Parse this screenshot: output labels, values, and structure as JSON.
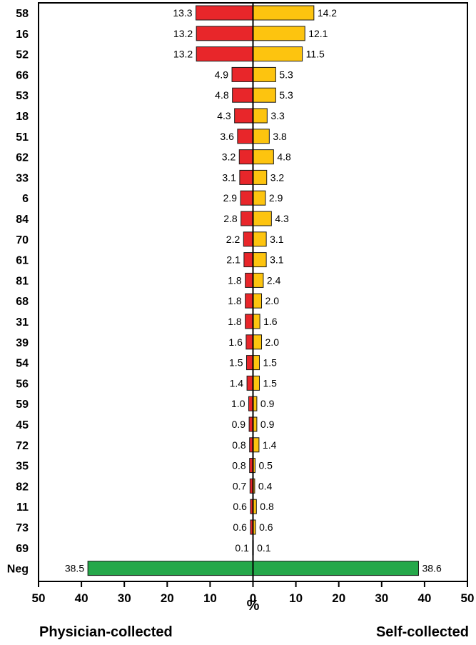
{
  "chart_data": {
    "type": "bar",
    "orientation": "horizontal",
    "layout": "mirrored-butterfly",
    "categories": [
      "58",
      "16",
      "52",
      "66",
      "53",
      "18",
      "51",
      "62",
      "33",
      "6",
      "84",
      "70",
      "61",
      "81",
      "68",
      "31",
      "39",
      "54",
      "56",
      "59",
      "45",
      "72",
      "35",
      "82",
      "11",
      "73",
      "69",
      "Neg"
    ],
    "series": [
      {
        "side": "left",
        "values": [
          13.3,
          13.2,
          13.2,
          4.9,
          4.8,
          4.3,
          3.6,
          3.2,
          3.1,
          2.9,
          2.8,
          2.2,
          2.1,
          1.8,
          1.8,
          1.8,
          1.6,
          1.5,
          1.4,
          1.0,
          0.9,
          0.8,
          0.8,
          0.7,
          0.6,
          0.6,
          0.1,
          38.5
        ],
        "labels": [
          "13.3",
          "13.2",
          "13.2",
          "4.9",
          "4.8",
          "4.3",
          "3.6",
          "3.2",
          "3.1",
          "2.9",
          "2.8",
          "2.2",
          "2.1",
          "1.8",
          "1.8",
          "1.8",
          "1.6",
          "1.5",
          "1.4",
          "1.0",
          "0.9",
          "0.8",
          "0.8",
          "0.7",
          "0.6",
          "0.6",
          "0.1",
          "38.5"
        ]
      },
      {
        "side": "right",
        "values": [
          14.2,
          12.1,
          11.5,
          5.3,
          5.3,
          3.3,
          3.8,
          4.8,
          3.2,
          2.9,
          4.3,
          3.1,
          3.1,
          2.4,
          2.0,
          1.6,
          2.0,
          1.5,
          1.5,
          0.9,
          0.9,
          1.4,
          0.5,
          0.4,
          0.8,
          0.6,
          0.1,
          38.6
        ],
        "labels": [
          "14.2",
          "12.1",
          "11.5",
          "5.3",
          "5.3",
          "3.3",
          "3.8",
          "4.8",
          "3.2",
          "2.9",
          "4.3",
          "3.1",
          "3.1",
          "2.4",
          "2.0",
          "1.6",
          "2.0",
          "1.5",
          "1.5",
          "0.9",
          "0.9",
          "1.4",
          "0.5",
          "0.4",
          "0.8",
          "0.6",
          "0.1",
          "38.6"
        ]
      }
    ],
    "colors": {
      "left": "#e8262a",
      "right": "#fdc40f",
      "neg": "#25a84a",
      "bar_stroke": "#1a1a1a"
    },
    "xlabel": "%",
    "xlim": [
      -50,
      50
    ],
    "xticks": [
      -50,
      -40,
      -30,
      -20,
      -10,
      0,
      10,
      20,
      30,
      40,
      50
    ],
    "xtick_labels": [
      "50",
      "40",
      "30",
      "20",
      "10",
      "0",
      "10",
      "20",
      "30",
      "40",
      "50"
    ],
    "side_titles": {
      "left": "Physician-collected",
      "right": "Self-collected"
    },
    "grid": false,
    "legend": "none"
  }
}
